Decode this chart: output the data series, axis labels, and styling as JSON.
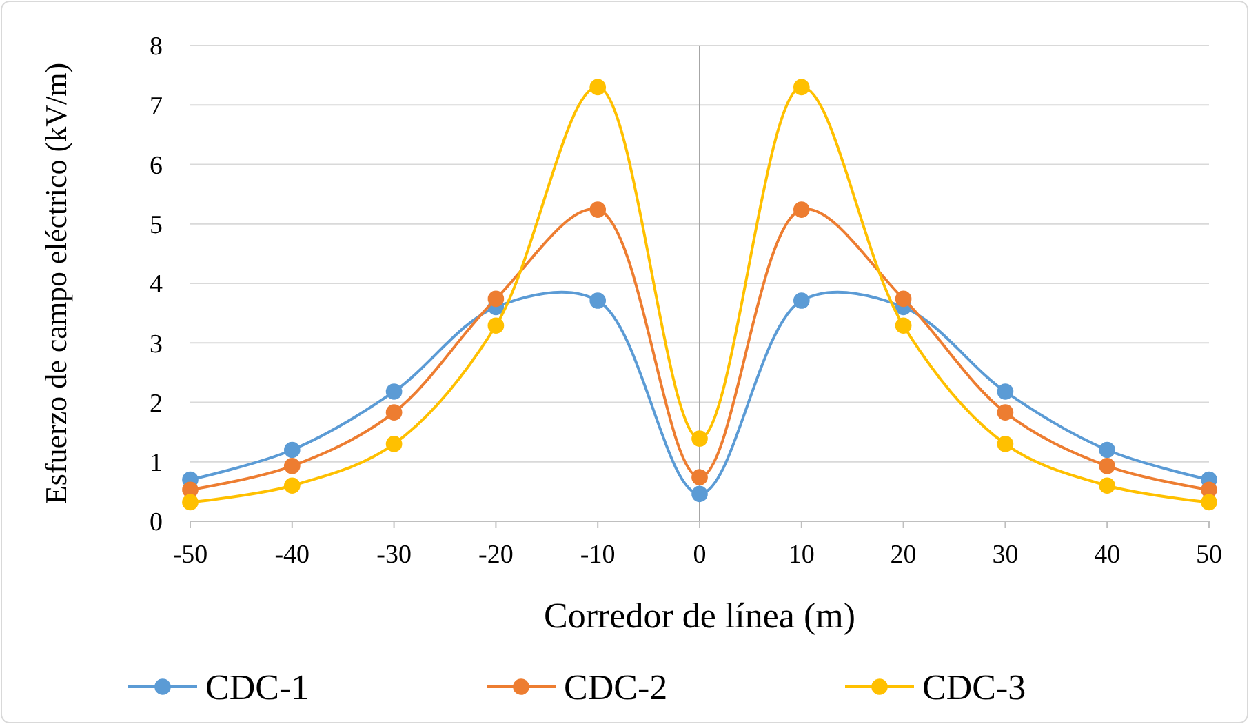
{
  "chart_data": {
    "type": "line",
    "xlabel": "Corredor  de línea (m)",
    "ylabel": "Esfuerzo de campo eléctrico (kV/m)",
    "x": [
      -50,
      -40,
      -30,
      -20,
      -10,
      0,
      10,
      20,
      30,
      40,
      50
    ],
    "series": [
      {
        "name": "CDC-1",
        "color": "#5b9bd5",
        "values": [
          0.7,
          1.2,
          2.18,
          3.6,
          3.71,
          0.46,
          3.71,
          3.6,
          2.18,
          1.2,
          0.7
        ]
      },
      {
        "name": "CDC-2",
        "color": "#ed7d31",
        "values": [
          0.53,
          0.93,
          1.83,
          3.74,
          5.24,
          0.74,
          5.24,
          3.74,
          1.83,
          0.93,
          0.53
        ]
      },
      {
        "name": "CDC-3",
        "color": "#ffc000",
        "values": [
          0.32,
          0.6,
          1.3,
          3.29,
          7.3,
          1.39,
          7.3,
          3.29,
          1.3,
          0.6,
          0.32
        ]
      }
    ],
    "xlim": [
      -50,
      50
    ],
    "xticks": [
      -50,
      -40,
      -30,
      -20,
      -10,
      0,
      10,
      20,
      30,
      40,
      50
    ],
    "ylim": [
      0,
      8
    ],
    "yticks": [
      0,
      1,
      2,
      3,
      4,
      5,
      6,
      7,
      8
    ],
    "grid": "y",
    "legend": "bottom",
    "marker": "circle",
    "line_style": "solid"
  }
}
